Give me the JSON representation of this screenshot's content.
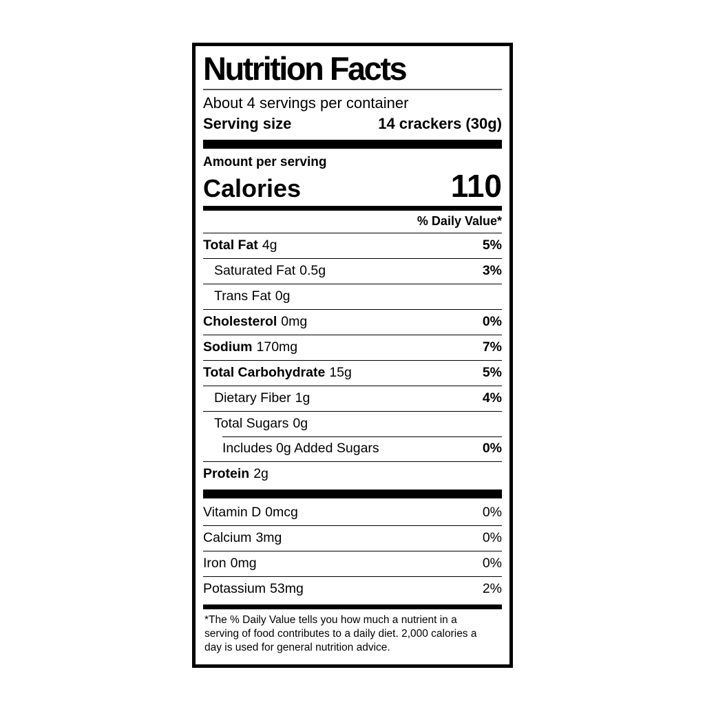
{
  "label": {
    "title": "Nutrition Facts",
    "servings_per_container": "About 4 servings per container",
    "serving_size_label": "Serving size",
    "serving_size_value": "14 crackers (30g)",
    "amount_per_serving": "Amount per serving",
    "calories_label": "Calories",
    "calories_value": "110",
    "daily_value_header": "% Daily Value*",
    "footnote": "*The % Daily Value tells you how much a nutrient in a serving of food contributes to a daily diet. 2,000 calories a day is used for general nutrition advice."
  },
  "rows": [
    {
      "name": "Total Fat",
      "amount": "4g",
      "dv": "5%"
    },
    {
      "name": "Saturated Fat",
      "amount": "0.5g",
      "dv": "3%"
    },
    {
      "name": "Trans Fat",
      "amount": "0g",
      "dv": ""
    },
    {
      "name": "Cholesterol",
      "amount": "0mg",
      "dv": "0%"
    },
    {
      "name": "Sodium",
      "amount": "170mg",
      "dv": "7%"
    },
    {
      "name": "Total Carbohydrate",
      "amount": "15g",
      "dv": "5%"
    },
    {
      "name": "Dietary Fiber",
      "amount": "1g",
      "dv": "4%"
    },
    {
      "name": "Total Sugars",
      "amount": "0g",
      "dv": ""
    },
    {
      "name": "Includes 0g Added Sugars",
      "amount": "",
      "dv": "0%"
    },
    {
      "name": "Protein",
      "amount": "2g",
      "dv": ""
    }
  ],
  "vitamins": [
    {
      "name": "Vitamin D",
      "amount": "0mcg",
      "dv": "0%"
    },
    {
      "name": "Calcium",
      "amount": "3mg",
      "dv": "0%"
    },
    {
      "name": "Iron",
      "amount": "0mg",
      "dv": "0%"
    },
    {
      "name": "Potassium",
      "amount": "53mg",
      "dv": "2%"
    }
  ]
}
